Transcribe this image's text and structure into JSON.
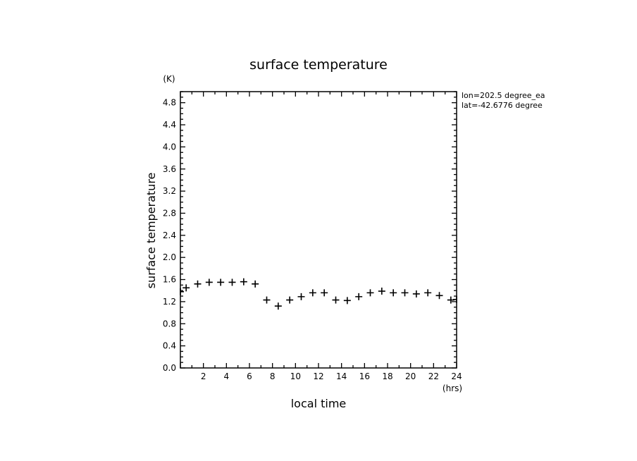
{
  "chart_data": {
    "type": "scatter",
    "title": "surface temperature",
    "xlabel": "local time",
    "ylabel": "surface temperature",
    "x_unit": "(hrs)",
    "y_unit": "(K)",
    "xlim": [
      0,
      24
    ],
    "ylim": [
      0,
      5
    ],
    "x_ticks": [
      2,
      4,
      6,
      8,
      10,
      12,
      14,
      16,
      18,
      20,
      22,
      24
    ],
    "y_ticks": [
      0.0,
      0.4,
      0.8,
      1.2,
      1.6,
      2.0,
      2.4,
      2.8,
      3.2,
      3.6,
      4.0,
      4.4,
      4.8
    ],
    "grid": false,
    "annotations": [
      "lon=202.5 degree_ea",
      "lat=-42.6776 degree"
    ],
    "x": [
      0,
      0.5,
      1.5,
      2.5,
      3.5,
      4.5,
      5.5,
      6.5,
      7.5,
      8.5,
      9.5,
      10.5,
      11.5,
      12.5,
      13.5,
      14.5,
      15.5,
      16.5,
      17.5,
      18.5,
      19.5,
      20.5,
      21.5,
      22.5,
      23.5,
      24
    ],
    "y": [
      1.38,
      1.45,
      1.52,
      1.55,
      1.55,
      1.55,
      1.56,
      1.52,
      1.23,
      1.12,
      1.23,
      1.29,
      1.36,
      1.36,
      1.23,
      1.22,
      1.29,
      1.36,
      1.39,
      1.36,
      1.36,
      1.34,
      1.36,
      1.31,
      1.23,
      1.24
    ],
    "marker": "+",
    "color": "#000000"
  }
}
